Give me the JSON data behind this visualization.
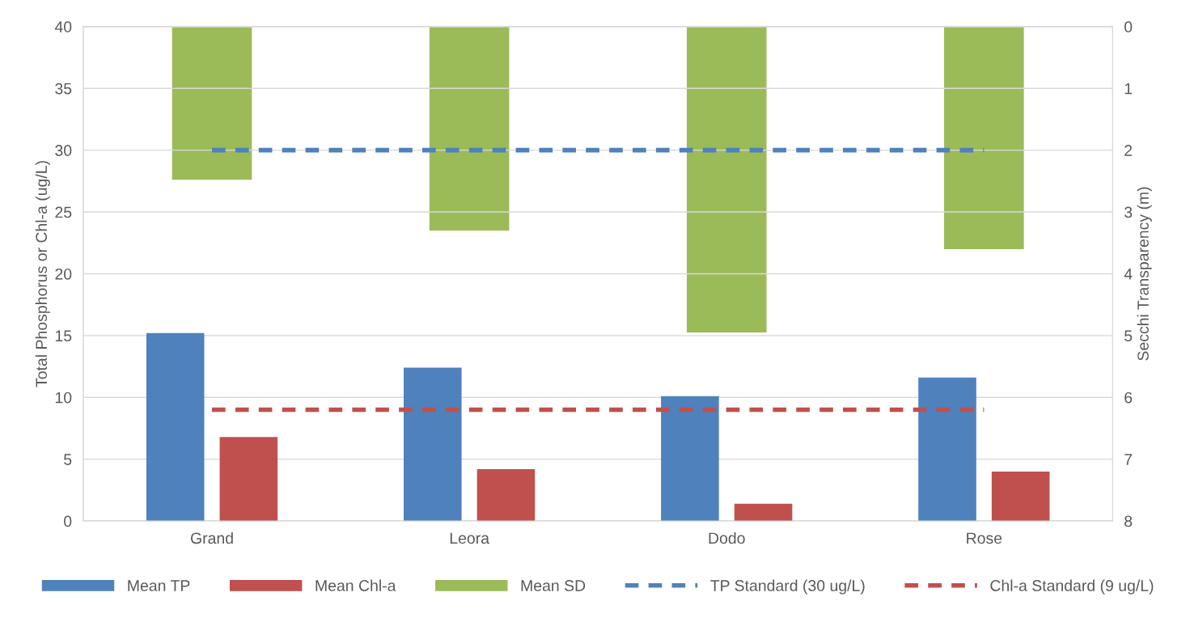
{
  "chart_data": {
    "type": "bar",
    "categories": [
      "Grand",
      "Leora",
      "Dodo",
      "Rose"
    ],
    "ylabel": "Total Phosphorus or Chl-a (ug/L)",
    "y2label": "Secchi Transparency (m)",
    "ylim": [
      0,
      40
    ],
    "yticks": [
      0,
      5,
      10,
      15,
      20,
      25,
      30,
      35,
      40
    ],
    "y2lim": [
      8,
      0
    ],
    "y2ticks": [
      0,
      1,
      2,
      3,
      4,
      5,
      6,
      7,
      8
    ],
    "grid": "y",
    "legend": "bottom",
    "series": [
      {
        "name": "Mean TP",
        "color": "#4f81bd",
        "values": [
          15.2,
          12.4,
          10.1,
          11.6
        ]
      },
      {
        "name": "Mean Chl-a",
        "color": "#c0504d",
        "values": [
          6.8,
          4.2,
          1.4,
          4.0
        ]
      },
      {
        "name": "Mean SD",
        "color": "#9bbb59",
        "axis": "y2",
        "values": [
          2.48,
          3.3,
          4.95,
          3.6
        ]
      },
      {
        "name": "TP Standard (30 ug/L)",
        "color": "#4f81bd",
        "type": "line",
        "line_style": "dashed",
        "values": [
          30,
          30,
          30,
          30
        ]
      },
      {
        "name": "Chl-a Standard (9 ug/L)",
        "color": "#c0504d",
        "type": "line",
        "line_style": "dashed",
        "values": [
          9,
          9,
          9,
          9
        ]
      }
    ]
  }
}
